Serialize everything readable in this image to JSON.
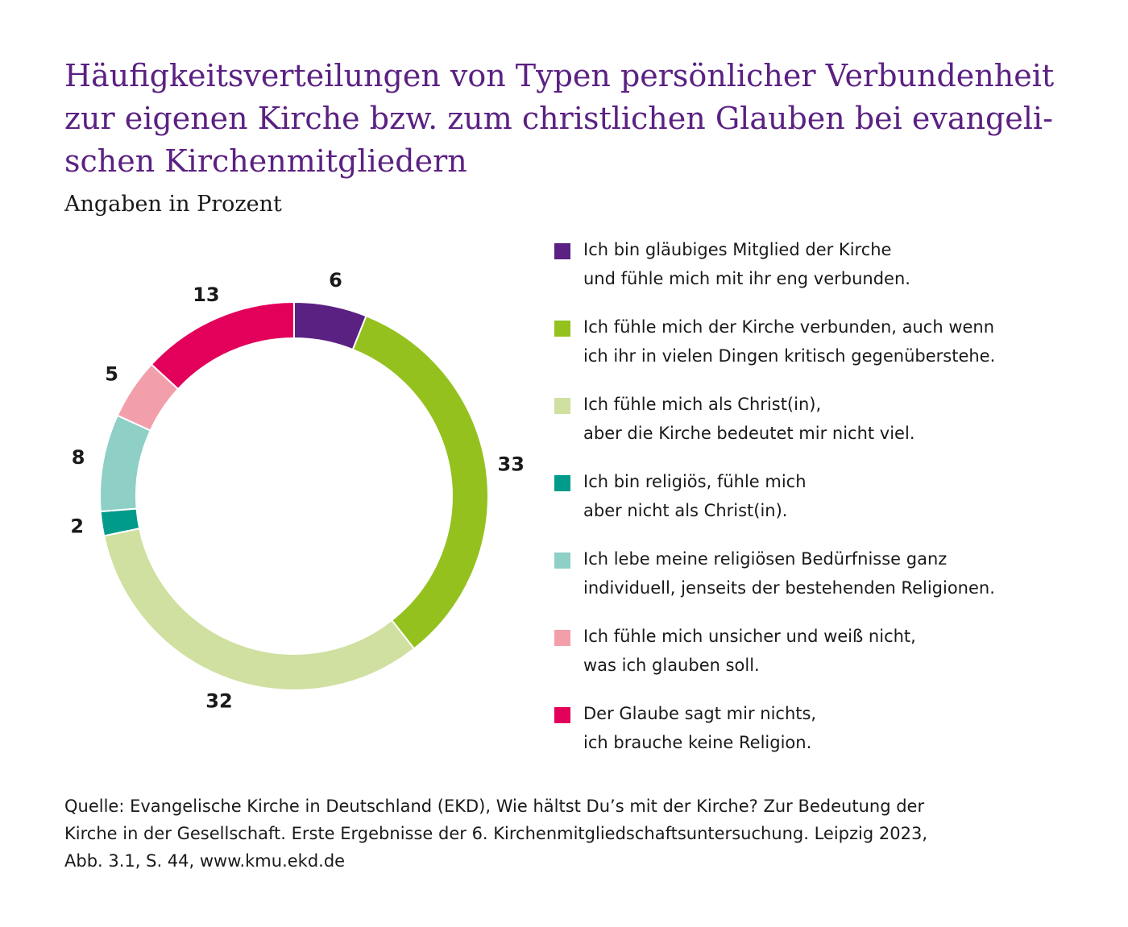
{
  "chart_data": {
    "type": "donut",
    "title": "Häufigkeitsverteilungen von Typen persönlicher Verbundenheit\nzur eigenen Kirche bzw. zum christlichen Glauben bei evangeli-\nschen Kirchenmitgliedern",
    "subtitle": "Angaben in Prozent",
    "categories": [
      "Ich bin gläubiges Mitglied der Kirche\nund fühle mich mit ihr eng verbunden.",
      "Ich fühle mich der Kirche verbunden, auch wenn\nich ihr in vielen Dingen kritisch gegenüberstehe.",
      "Ich fühle mich als Christ(in),\naber die Kirche bedeutet mir nicht viel.",
      "Ich bin religiös, fühle mich\naber nicht als Christ(in).",
      "Ich lebe meine religiösen Bedürfnisse ganz\nindividuell, jenseits der bestehenden Religionen.",
      "Ich fühle mich unsicher und weiß nicht,\nwas ich glauben soll.",
      "Der Glaube sagt mir nichts,\nich brauche keine Religion."
    ],
    "values": [
      6,
      33,
      32,
      2,
      8,
      5,
      13
    ],
    "colors": [
      "#5b2182",
      "#95c11f",
      "#cfe0a0",
      "#009b8a",
      "#8ecfc6",
      "#f29fab",
      "#e2005a"
    ],
    "legend": "right",
    "source": "Quelle: Evangelische Kirche in Deutschland (EKD), Wie hältst Du’s mit der Kirche? Zur Bedeutung der\nKirche in der Gesellschaft. Erste Ergebnisse der 6. Kirchenmitgliedschaftsuntersuchung. Leipzig 2023,\nAbb. 3.1, S. 44, www.kmu.ekd.de"
  }
}
